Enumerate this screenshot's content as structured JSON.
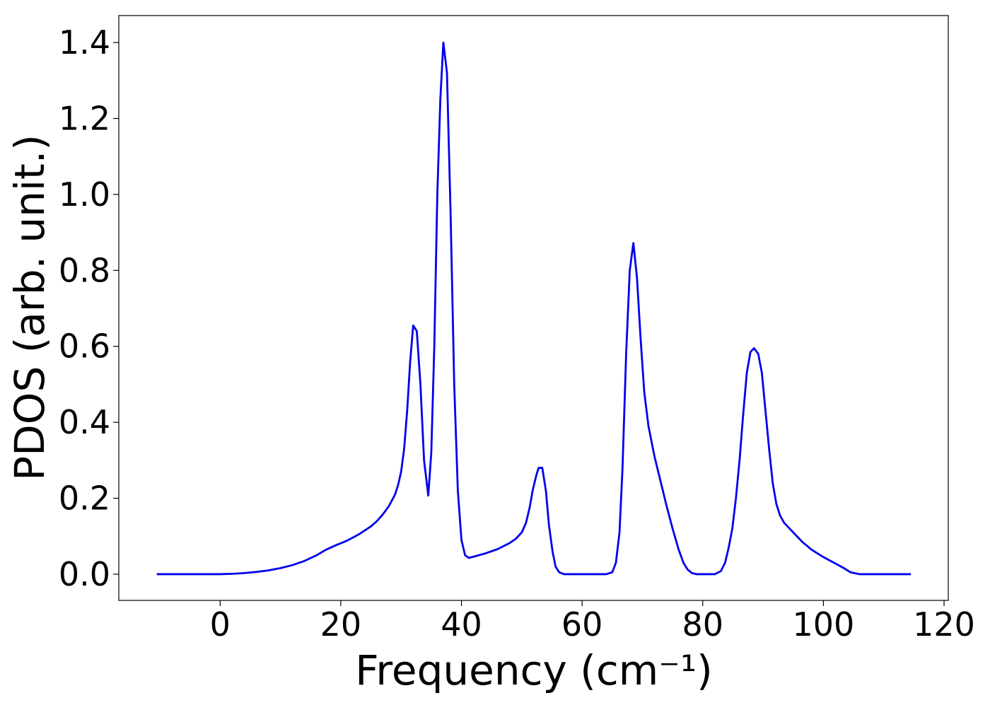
{
  "chart_data": {
    "type": "line",
    "xlabel": "Frequency (cm⁻¹)",
    "ylabel": "PDOS (arb. unit.)",
    "xlim": [
      -16.8,
      120.7
    ],
    "ylim": [
      -0.069,
      1.471
    ],
    "xticks": [
      0,
      20,
      40,
      60,
      80,
      100,
      120
    ],
    "yticks": [
      {
        "value": 0,
        "label": "0.0"
      },
      {
        "value": 0.2,
        "label": "0.2"
      },
      {
        "value": 0.4,
        "label": "0.4"
      },
      {
        "value": 0.6,
        "label": "0.6"
      },
      {
        "value": 0.8,
        "label": "0.8"
      },
      {
        "value": 1,
        "label": "1.0"
      },
      {
        "value": 1.2,
        "label": "1.2"
      },
      {
        "value": 1.4,
        "label": "1.4"
      }
    ],
    "grid": false,
    "x": [
      -10.5,
      -5,
      0,
      2,
      4,
      6,
      8,
      10,
      12,
      14,
      16,
      17.5,
      19,
      21,
      23,
      25,
      26,
      27,
      28,
      29,
      29.5,
      30,
      30.5,
      31,
      31.5,
      32,
      32.6,
      33.2,
      33.8,
      34.5,
      35,
      35.5,
      36,
      36.5,
      37,
      37.6,
      38.2,
      38.8,
      39.4,
      40,
      40.6,
      41.2,
      42,
      44,
      46,
      48,
      49,
      50,
      50.7,
      51.3,
      51.8,
      52.4,
      52.8,
      53.4,
      54,
      54.5,
      55.1,
      55.6,
      56.2,
      57,
      60,
      64,
      65,
      65.6,
      66.2,
      66.7,
      67.3,
      67.9,
      68.5,
      69.1,
      69.7,
      70.3,
      71,
      72,
      73,
      74,
      75,
      76,
      76.8,
      77.5,
      78.2,
      79,
      82,
      83,
      83.7,
      84.3,
      84.9,
      85.5,
      86.1,
      86.7,
      87.3,
      87.9,
      88.5,
      89.2,
      89.8,
      90.4,
      91,
      91.6,
      92.2,
      92.8,
      93.5,
      95,
      96.5,
      98,
      100,
      102,
      103.5,
      104.5,
      106,
      110,
      114.5
    ],
    "series": [
      {
        "color": "#0000ee",
        "values": [
          0,
          0,
          0,
          0.001,
          0.003,
          0.006,
          0.01,
          0.016,
          0.024,
          0.035,
          0.05,
          0.064,
          0.075,
          0.088,
          0.105,
          0.126,
          0.14,
          0.158,
          0.18,
          0.21,
          0.235,
          0.27,
          0.33,
          0.43,
          0.56,
          0.655,
          0.64,
          0.5,
          0.3,
          0.207,
          0.32,
          0.6,
          1.0,
          1.25,
          1.4,
          1.32,
          0.95,
          0.5,
          0.22,
          0.09,
          0.05,
          0.043,
          0.046,
          0.055,
          0.066,
          0.082,
          0.093,
          0.11,
          0.135,
          0.175,
          0.22,
          0.26,
          0.28,
          0.28,
          0.22,
          0.13,
          0.06,
          0.02,
          0.005,
          0,
          0,
          0,
          0.005,
          0.03,
          0.11,
          0.28,
          0.58,
          0.8,
          0.872,
          0.78,
          0.62,
          0.48,
          0.39,
          0.31,
          0.245,
          0.18,
          0.12,
          0.065,
          0.03,
          0.012,
          0.003,
          0,
          0,
          0.008,
          0.03,
          0.07,
          0.12,
          0.2,
          0.3,
          0.42,
          0.53,
          0.585,
          0.595,
          0.58,
          0.53,
          0.43,
          0.33,
          0.24,
          0.185,
          0.155,
          0.135,
          0.11,
          0.085,
          0.065,
          0.045,
          0.028,
          0.015,
          0.005,
          0,
          0,
          0
        ]
      }
    ]
  }
}
